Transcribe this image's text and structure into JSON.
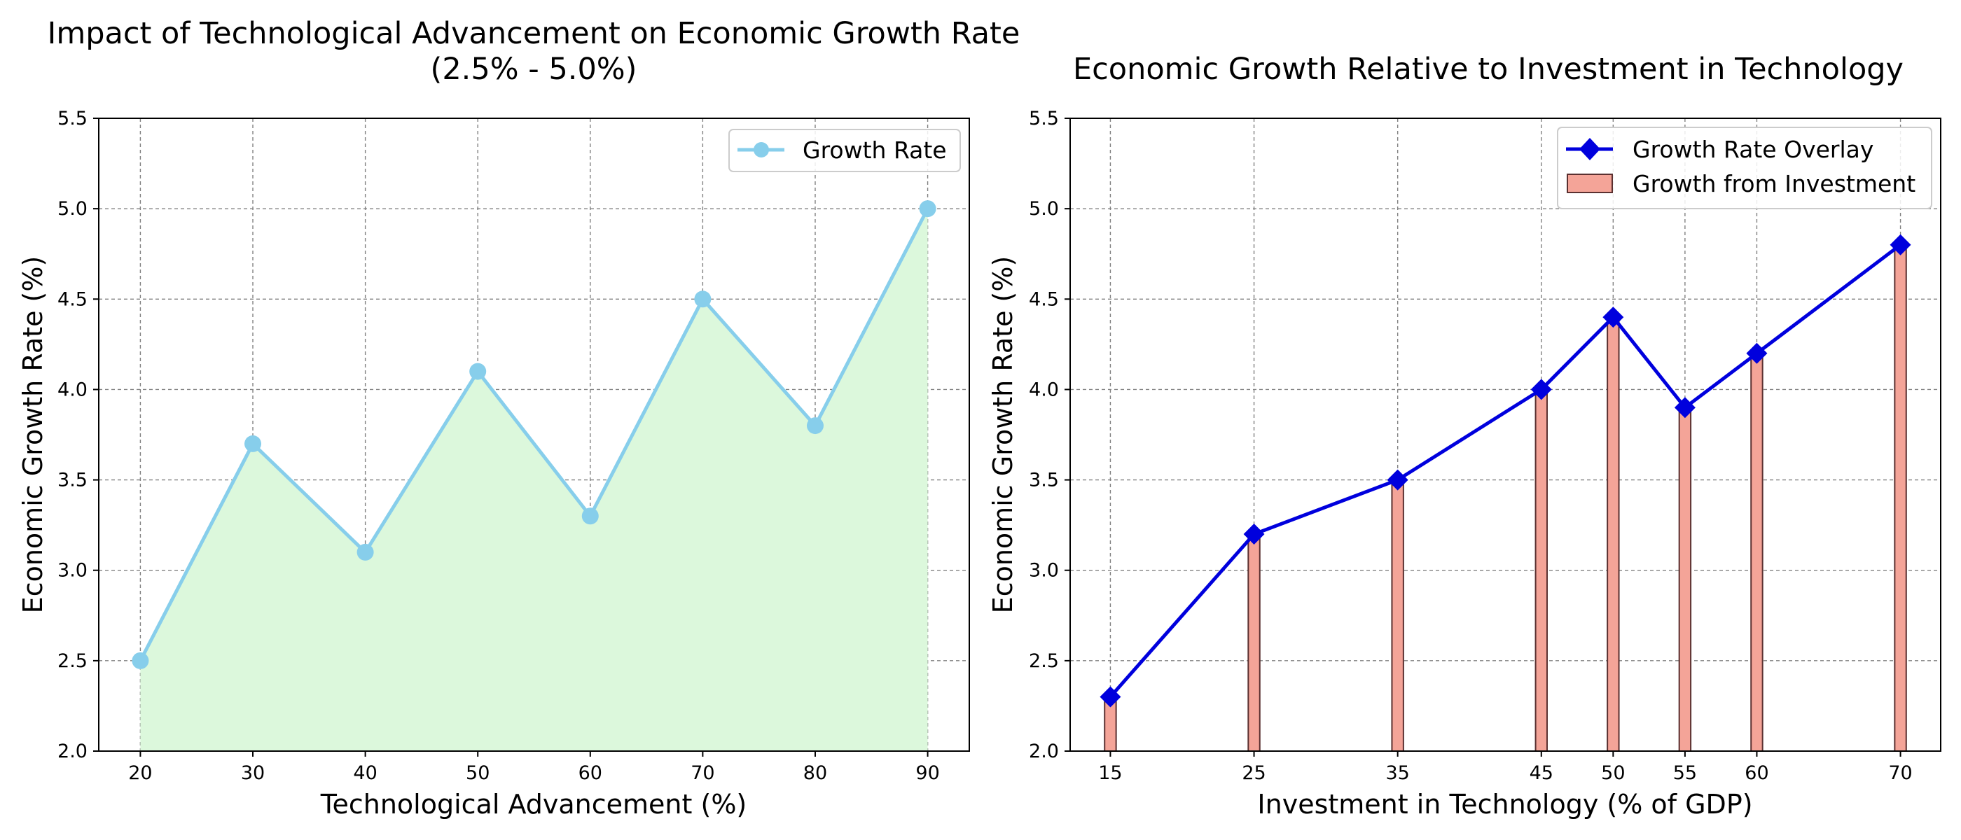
{
  "chart_data": [
    {
      "type": "line",
      "title_line1": "Impact of Technological Advancement on Economic Growth Rate",
      "title_line2": "(2.5% - 5.0%)",
      "xlabel": "Technological Advancement (%)",
      "ylabel": "Economic Growth Rate (%)",
      "x": [
        20,
        30,
        40,
        50,
        60,
        70,
        80,
        90
      ],
      "xlim": [
        16.3,
        93.7
      ],
      "ylim": [
        2.0,
        5.5
      ],
      "yticks": [
        2.0,
        2.5,
        3.0,
        3.5,
        4.0,
        4.5,
        5.0,
        5.5
      ],
      "series": [
        {
          "name": "Growth Rate",
          "values": [
            2.5,
            3.7,
            3.1,
            4.1,
            3.3,
            4.5,
            3.8,
            5.0
          ],
          "color": "#87ceeb",
          "marker": "circle",
          "fill": "#dcf8dc"
        }
      ],
      "legend": "upper-right",
      "grid": true
    },
    {
      "type": "bar",
      "title": "Economic Growth Relative to Investment in Technology",
      "xlabel": "Investment in Technology (% of GDP)",
      "ylabel": "Economic Growth Rate (%)",
      "x": [
        15,
        25,
        35,
        45,
        50,
        55,
        60,
        70
      ],
      "xlim": [
        12.2,
        72.8
      ],
      "ylim": [
        2.0,
        5.5
      ],
      "yticks": [
        2.0,
        2.5,
        3.0,
        3.5,
        4.0,
        4.5,
        5.0,
        5.5
      ],
      "series": [
        {
          "name": "Growth Rate Overlay",
          "type": "line",
          "values": [
            2.3,
            3.2,
            3.5,
            4.0,
            4.4,
            3.9,
            4.2,
            4.8
          ],
          "color": "#0000dd",
          "marker": "diamond"
        },
        {
          "name": "Growth from Investment",
          "type": "bar",
          "values": [
            2.3,
            3.2,
            3.5,
            4.0,
            4.4,
            3.9,
            4.2,
            4.8
          ],
          "color": "#f4a498",
          "edge_color": "#5a3030"
        }
      ],
      "legend": "upper-right",
      "grid": true
    }
  ]
}
